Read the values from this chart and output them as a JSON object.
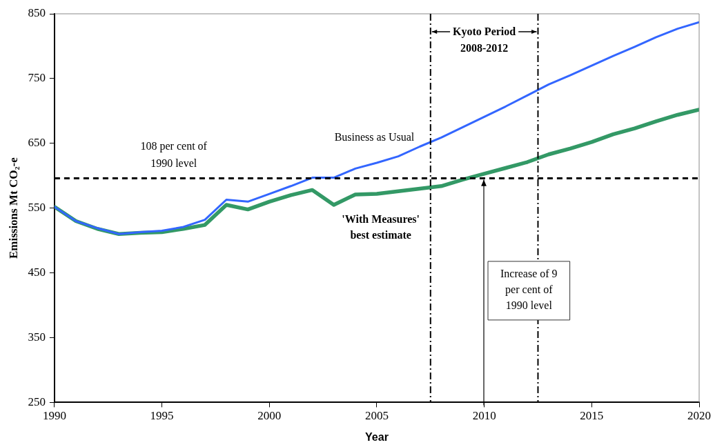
{
  "chart_data": {
    "type": "line",
    "xlabel": "Year",
    "ylabel": "Emissions Mt CO₂-e",
    "x": [
      1990,
      1991,
      1992,
      1993,
      1994,
      1995,
      1996,
      1997,
      1998,
      1999,
      2000,
      2001,
      2002,
      2003,
      2004,
      2005,
      2006,
      2007,
      2008,
      2009,
      2010,
      2011,
      2012,
      2013,
      2014,
      2015,
      2016,
      2017,
      2018,
      2019,
      2020
    ],
    "series": [
      {
        "name": "Business as Usual",
        "color": "#3366ff",
        "values": [
          552,
          530,
          519,
          510,
          513,
          515,
          521,
          532,
          563,
          560,
          572,
          584,
          597,
          597,
          611,
          620,
          630,
          645,
          659,
          675,
          691,
          707,
          724,
          741,
          755,
          770,
          785,
          799,
          814,
          827,
          837
        ]
      },
      {
        "name": "'With Measures' best estimate",
        "color": "#339966",
        "values": [
          552,
          530,
          518,
          510,
          512,
          513,
          518,
          524,
          555,
          548,
          560,
          570,
          578,
          555,
          571,
          572,
          576,
          580,
          584,
          594,
          603,
          612,
          621,
          633,
          642,
          652,
          664,
          673,
          684,
          694,
          702
        ]
      }
    ],
    "xlim": [
      1990,
      2020
    ],
    "xticks": [
      1990,
      1995,
      2000,
      2005,
      2010,
      2015,
      2020
    ],
    "ylim": [
      250,
      850
    ],
    "yticks": [
      250,
      350,
      450,
      550,
      650,
      750,
      850
    ],
    "ref_lines": [
      {
        "axis": "y",
        "value": 596,
        "label": "108 per cent of 1990 level",
        "color": "#000000",
        "line_style": "dashed"
      },
      {
        "axis": "x",
        "value": 2007.5,
        "label": "Kyoto Period 2008-2012",
        "color": "#000000",
        "line_style": "dashed"
      },
      {
        "axis": "x",
        "value": 2012.5,
        "color": "#000000",
        "line_style": "dashed"
      }
    ],
    "annotations": [
      "Increase of 9 per cent of 1990 level"
    ],
    "grid": false,
    "legend": false,
    "marker": "none",
    "line_style": "solid"
  }
}
